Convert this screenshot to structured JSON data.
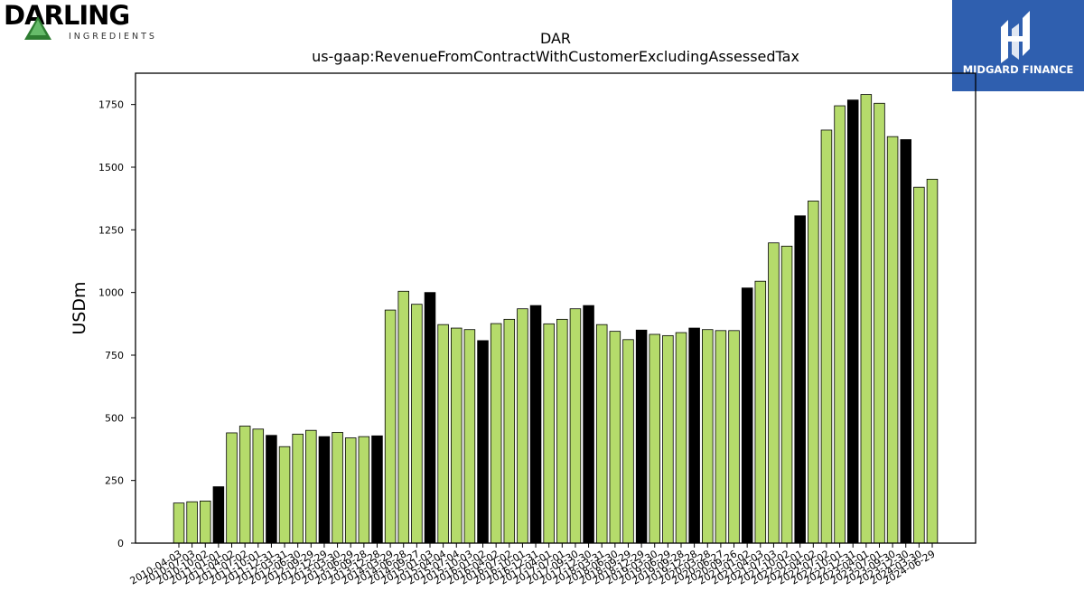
{
  "logos": {
    "left_word": "DARLING",
    "left_sub": "INGREDIENTS",
    "right_word": "MIDGARD FINANCE",
    "left_color": "#1a1a1a",
    "left_triangle_color": "#2e7d32",
    "right_bg": "#2f5faf"
  },
  "colors": {
    "bar_default": "#b5db6b",
    "bar_highlight": "#000000",
    "bar_edge": "#000000"
  },
  "chart_data": {
    "type": "bar",
    "title": "DAR",
    "subtitle": "us-gaap:RevenueFromContractWithCustomerExcludingAssessedTax",
    "xlabel": "",
    "ylabel": "USDm",
    "ylim": [
      0,
      1875
    ],
    "yticks": [
      0,
      250,
      500,
      750,
      1000,
      1250,
      1500,
      1750
    ],
    "grid": false,
    "categories": [
      "2010-04-03",
      "2010-07-03",
      "2010-10-02",
      "2011-01-01",
      "2011-04-02",
      "2011-07-02",
      "2011-10-01",
      "2011-12-31",
      "2012-03-31",
      "2012-06-30",
      "2012-09-29",
      "2012-12-29",
      "2013-03-30",
      "2013-06-29",
      "2013-09-28",
      "2013-12-28",
      "2014-03-29",
      "2014-06-28",
      "2014-09-27",
      "2015-01-03",
      "2015-04-04",
      "2015-07-04",
      "2015-10-03",
      "2016-01-02",
      "2016-04-02",
      "2016-07-02",
      "2016-10-01",
      "2016-12-31",
      "2017-04-01",
      "2017-07-01",
      "2017-09-30",
      "2017-12-30",
      "2018-03-31",
      "2018-06-30",
      "2018-09-29",
      "2018-12-29",
      "2019-03-30",
      "2019-06-29",
      "2019-09-28",
      "2019-12-28",
      "2020-03-28",
      "2020-06-27",
      "2020-09-26",
      "2021-01-02",
      "2021-04-03",
      "2021-07-03",
      "2021-10-02",
      "2022-01-01",
      "2022-04-02",
      "2022-07-02",
      "2022-10-01",
      "2022-12-31",
      "2023-04-01",
      "2023-07-01",
      "2023-09-30",
      "2023-12-30",
      "2024-03-30",
      "2024-06-29"
    ],
    "values": [
      160,
      165,
      168,
      225,
      440,
      467,
      455,
      430,
      385,
      435,
      450,
      425,
      442,
      420,
      425,
      428,
      930,
      1005,
      953,
      1000,
      872,
      858,
      852,
      808,
      876,
      893,
      935,
      948,
      875,
      893,
      935,
      948,
      872,
      845,
      812,
      850,
      833,
      828,
      840,
      858,
      852,
      848,
      848,
      1018,
      1045,
      1198,
      1185,
      1306,
      1365,
      1648,
      1745,
      1768,
      1790,
      1755,
      1622,
      1610,
      1420,
      1452
    ],
    "highlight_indices": [
      3,
      7,
      11,
      15,
      19,
      23,
      27,
      31,
      35,
      39,
      43,
      47,
      51,
      55
    ]
  }
}
